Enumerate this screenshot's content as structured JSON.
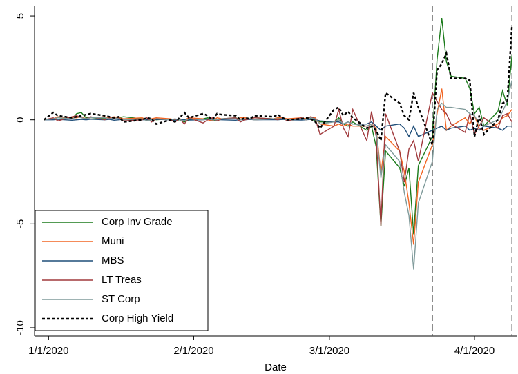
{
  "chart_data": {
    "type": "line",
    "x_label": "Date",
    "x": [
      "12/31/2019",
      "1/2/2020",
      "1/3/2020",
      "1/6/2020",
      "1/7/2020",
      "1/8/2020",
      "1/9/2020",
      "1/10/2020",
      "1/13/2020",
      "1/14/2020",
      "1/15/2020",
      "1/16/2020",
      "1/17/2020",
      "1/21/2020",
      "1/22/2020",
      "1/23/2020",
      "1/24/2020",
      "1/27/2020",
      "1/28/2020",
      "1/29/2020",
      "1/30/2020",
      "1/31/2020",
      "2/3/2020",
      "2/4/2020",
      "2/5/2020",
      "2/6/2020",
      "2/7/2020",
      "2/10/2020",
      "2/11/2020",
      "2/12/2020",
      "2/13/2020",
      "2/14/2020",
      "2/18/2020",
      "2/19/2020",
      "2/20/2020",
      "2/21/2020",
      "2/24/2020",
      "2/25/2020",
      "2/26/2020",
      "2/27/2020",
      "2/28/2020",
      "3/2/2020",
      "3/3/2020",
      "3/4/2020",
      "3/5/2020",
      "3/6/2020",
      "3/9/2020",
      "3/10/2020",
      "3/11/2020",
      "3/12/2020",
      "3/13/2020",
      "3/16/2020",
      "3/17/2020",
      "3/18/2020",
      "3/19/2020",
      "3/20/2020",
      "3/23/2020",
      "3/24/2020",
      "3/25/2020",
      "3/26/2020",
      "3/27/2020",
      "3/30/2020",
      "3/31/2020",
      "4/1/2020",
      "4/2/2020",
      "4/3/2020",
      "4/6/2020",
      "4/7/2020",
      "4/8/2020",
      "4/9/2020"
    ],
    "series": [
      {
        "name": "Corp Inv Grade",
        "color": "#1a7a1a",
        "dash": "solid",
        "values": [
          0,
          0.05,
          0.1,
          0.05,
          0.3,
          0.35,
          0.1,
          0.1,
          0.05,
          0.1,
          0.05,
          0.1,
          0.15,
          0.05,
          0,
          0.05,
          0,
          0.05,
          -0.05,
          0,
          -0.1,
          0,
          0.05,
          0.1,
          0,
          -0.05,
          0.05,
          0.1,
          0,
          0.05,
          0.05,
          0.1,
          0.05,
          0.1,
          0.05,
          0,
          0.05,
          0,
          0.05,
          -0.05,
          -0.1,
          -0.1,
          0.1,
          -0.2,
          -0.3,
          -0.1,
          -0.5,
          -0.3,
          -1.3,
          -5.1,
          -1.5,
          -2.3,
          -3.2,
          -2.3,
          -5.5,
          -2.2,
          -0.8,
          2.9,
          4.9,
          2.8,
          2.1,
          2.0,
          1.5,
          0.3,
          0.6,
          -0.3,
          0.4,
          1.4,
          0.7,
          3.1
        ]
      },
      {
        "name": "Muni",
        "color": "#f26522",
        "dash": "solid",
        "values": [
          0,
          0.05,
          0.15,
          0.1,
          0.1,
          0.15,
          0.05,
          0.1,
          0.15,
          0.1,
          0.15,
          0.1,
          0.05,
          0.1,
          0,
          0.05,
          0.1,
          0.05,
          0,
          0.05,
          0,
          0.1,
          0.05,
          0,
          -0.05,
          0.1,
          0.05,
          0.05,
          0.1,
          0.1,
          0.05,
          0,
          0.05,
          0.1,
          0.1,
          0.05,
          0.1,
          0.05,
          0.15,
          0.1,
          -0.2,
          -0.3,
          -0.2,
          -0.3,
          -0.2,
          -0.3,
          -0.3,
          -0.2,
          -0.4,
          -2.6,
          -0.8,
          -1.5,
          -2.5,
          -4.0,
          -6.0,
          -3.0,
          -1.2,
          0.3,
          1.5,
          -0.5,
          -0.3,
          0.1,
          -0.2,
          0.2,
          -0.4,
          -0.5,
          -0.2,
          0.1,
          0.2,
          0.5
        ]
      },
      {
        "name": "MBS",
        "color": "#1f4e79",
        "dash": "solid",
        "values": [
          0,
          0,
          0.02,
          -0.02,
          0,
          0.02,
          0,
          0.03,
          0,
          0.02,
          -0.02,
          0,
          0.02,
          0,
          0.01,
          0,
          0.02,
          0,
          -0.02,
          0.01,
          0,
          -0.01,
          0,
          0.02,
          0,
          0.01,
          0,
          -0.02,
          0.01,
          0,
          0.02,
          0,
          0.01,
          0,
          0.02,
          0,
          -0.01,
          0,
          0.02,
          0,
          -0.05,
          -0.1,
          -0.1,
          -0.2,
          -0.1,
          -0.2,
          -0.2,
          -0.1,
          -0.3,
          -0.5,
          -0.3,
          -0.2,
          -0.4,
          -0.8,
          -0.3,
          -0.8,
          -0.5,
          -0.4,
          -0.3,
          -0.5,
          -0.4,
          -0.3,
          -0.5,
          -0.4,
          -0.5,
          -0.3,
          -0.4,
          -0.5,
          -0.3,
          -0.3
        ]
      },
      {
        "name": "LT Treas",
        "color": "#a0393c",
        "dash": "solid",
        "values": [
          0,
          0.1,
          -0.05,
          0.15,
          0.2,
          0.1,
          0.05,
          0.15,
          0,
          0.1,
          0.05,
          0.1,
          -0.05,
          0,
          0.1,
          -0.1,
          0.05,
          0,
          -0.1,
          0.05,
          -0.2,
          0.1,
          -0.15,
          0,
          0.1,
          -0.05,
          0.05,
          0.1,
          -0.1,
          0,
          0.05,
          0.1,
          0.05,
          0,
          0.1,
          -0.05,
          0.1,
          0,
          0.15,
          0.05,
          -0.7,
          -0.3,
          0.5,
          -0.4,
          -0.8,
          0.5,
          -1.0,
          0.4,
          -0.8,
          -5.1,
          0.3,
          -1.5,
          -3.0,
          -1.4,
          -1.0,
          -2.0,
          1.3,
          0.9,
          0.5,
          0.3,
          -0.2,
          -0.6,
          0.3,
          -0.7,
          -0.3,
          0.1,
          -0.4,
          0.2,
          0.3,
          -0.1
        ]
      },
      {
        "name": "ST Corp",
        "color": "#7f9a9a",
        "dash": "solid",
        "values": [
          0,
          0.05,
          0.1,
          0.05,
          0.15,
          0.1,
          0.05,
          0.1,
          0.1,
          0.05,
          0.1,
          0.05,
          0,
          0.05,
          -0.05,
          0,
          0.05,
          0,
          0.05,
          0,
          -0.05,
          0.05,
          0,
          0.05,
          0,
          0,
          0.05,
          0.05,
          0,
          0.05,
          0.05,
          0,
          0.05,
          0.05,
          0.05,
          0,
          0.05,
          0,
          0.1,
          0.05,
          -0.2,
          -0.1,
          0,
          -0.2,
          -0.1,
          -0.2,
          -0.3,
          -0.2,
          -0.5,
          -2.8,
          -1.2,
          -2.0,
          -3.5,
          -4.6,
          -7.2,
          -4.0,
          -2.0,
          0.5,
          0.8,
          0.6,
          0.6,
          0.5,
          0.3,
          0.2,
          -0.2,
          -0.3,
          0,
          0.4,
          0.9,
          1.9
        ]
      },
      {
        "name": "Corp High Yield",
        "color": "#000000",
        "dash": "dotted",
        "values": [
          0,
          0.35,
          0.2,
          0.1,
          0.15,
          0.2,
          0.25,
          0.3,
          0.2,
          0.15,
          0.1,
          0.15,
          -0.1,
          0,
          0.1,
          0.05,
          -0.2,
          0,
          -0.1,
          0.1,
          0.35,
          0.1,
          0.3,
          0.2,
          0,
          0.3,
          0.25,
          0.2,
          0,
          0.1,
          0.05,
          0.2,
          0.15,
          0.25,
          0.1,
          0,
          0.05,
          0.1,
          0.05,
          -0.1,
          -0.4,
          0.5,
          0.6,
          0.2,
          0.4,
          0.1,
          -0.4,
          -0.3,
          -0.5,
          -1.0,
          1.3,
          0.8,
          0.2,
          0,
          1.3,
          0.6,
          -1.2,
          2.4,
          2.7,
          3.2,
          2.0,
          2.0,
          1.9,
          -0.8,
          0.2,
          -0.7,
          0,
          0.8,
          0.9,
          4.5
        ]
      }
    ],
    "xlim": [
      "12/29/2019",
      "4/10/2020"
    ],
    "xticks": [
      "1/1/2020",
      "2/1/2020",
      "3/1/2020",
      "4/1/2020"
    ],
    "ylim": [
      -10.4,
      5.5
    ],
    "yticks": [
      -10,
      -5,
      0,
      5
    ],
    "vlines": [
      "3/23/2020",
      "4/9/2020"
    ],
    "legend": "lower left"
  }
}
